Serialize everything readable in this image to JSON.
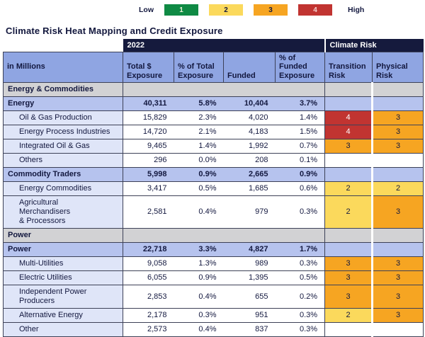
{
  "legend": {
    "low_label": "Low",
    "high_label": "High",
    "levels": [
      {
        "value": "1",
        "color": "#0f8a44",
        "text_color": "#eef2d8"
      },
      {
        "value": "2",
        "color": "#fbd95c",
        "text_color": "#13183f"
      },
      {
        "value": "3",
        "color": "#f6a522",
        "text_color": "#13183f"
      },
      {
        "value": "4",
        "color": "#c13431",
        "text_color": "#f5d2d0"
      }
    ]
  },
  "title": "Climate Risk Heat Mapping and Credit Exposure",
  "colors": {
    "navy": "#151a3d",
    "header_blue": "#8fa5e2",
    "summary_blue": "#b6c3ee",
    "label_blue": "#dfe5f8",
    "section_gray": "#d2d2d4",
    "risk_1": "#0f8a44",
    "risk_2": "#fbd95c",
    "risk_3": "#f6a522",
    "risk_4": "#c13431",
    "risk_4_text": "#ffffff",
    "text_dark": "#13183f"
  },
  "table": {
    "group_headers": [
      {
        "label": "2022"
      },
      {
        "label": "Climate Risk"
      }
    ],
    "columns": [
      "in Millions",
      "Total $ Exposure",
      "% of Total Exposure",
      "Funded",
      "% of Funded Exposure",
      "Transition Risk",
      "Physical Risk"
    ],
    "rows": [
      {
        "type": "section",
        "label": "Energy & Commodities",
        "values": [
          "",
          "",
          "",
          ""
        ],
        "transition": "",
        "physical": ""
      },
      {
        "type": "summary",
        "label": "Energy",
        "values": [
          "40,311",
          "5.8%",
          "10,404",
          "3.7%"
        ],
        "transition": "",
        "physical": ""
      },
      {
        "type": "detail",
        "label": "Oil & Gas Production",
        "values": [
          "15,829",
          "2.3%",
          "4,020",
          "1.4%"
        ],
        "transition": "4",
        "physical": "3"
      },
      {
        "type": "detail",
        "label": "Energy Process Industries",
        "values": [
          "14,720",
          "2.1%",
          "4,183",
          "1.5%"
        ],
        "transition": "4",
        "physical": "3"
      },
      {
        "type": "detail",
        "label": "Integrated Oil & Gas",
        "values": [
          "9,465",
          "1.4%",
          "1,992",
          "0.7%"
        ],
        "transition": "3",
        "physical": "3"
      },
      {
        "type": "detail",
        "label": "Others",
        "values": [
          "296",
          "0.0%",
          "208",
          "0.1%"
        ],
        "transition": "",
        "physical": ""
      },
      {
        "type": "summary",
        "label": "Commodity Traders",
        "values": [
          "5,998",
          "0.9%",
          "2,665",
          "0.9%"
        ],
        "transition": "",
        "physical": ""
      },
      {
        "type": "detail",
        "label": "Energy Commodities",
        "values": [
          "3,417",
          "0.5%",
          "1,685",
          "0.6%"
        ],
        "transition": "2",
        "physical": "2"
      },
      {
        "type": "detail",
        "label": "Agricultural\nMerchandisers\n& Processors",
        "values": [
          "2,581",
          "0.4%",
          "979",
          "0.3%"
        ],
        "transition": "2",
        "physical": "3"
      },
      {
        "type": "section",
        "label": "Power",
        "values": [
          "",
          "",
          "",
          ""
        ],
        "transition": "",
        "physical": ""
      },
      {
        "type": "summary",
        "label": "Power",
        "values": [
          "22,718",
          "3.3%",
          "4,827",
          "1.7%"
        ],
        "transition": "",
        "physical": ""
      },
      {
        "type": "detail",
        "label": "Multi-Utilities",
        "values": [
          "9,058",
          "1.3%",
          "989",
          "0.3%"
        ],
        "transition": "3",
        "physical": "3"
      },
      {
        "type": "detail",
        "label": "Electric Utilities",
        "values": [
          "6,055",
          "0.9%",
          "1,395",
          "0.5%"
        ],
        "transition": "3",
        "physical": "3"
      },
      {
        "type": "detail",
        "label": "Independent Power\nProducers",
        "values": [
          "2,853",
          "0.4%",
          "655",
          "0.2%"
        ],
        "transition": "3",
        "physical": "3"
      },
      {
        "type": "detail",
        "label": "Alternative Energy",
        "values": [
          "2,178",
          "0.3%",
          "951",
          "0.3%"
        ],
        "transition": "2",
        "physical": "3"
      },
      {
        "type": "detail",
        "label": "Other",
        "values": [
          "2,573",
          "0.4%",
          "837",
          "0.3%"
        ],
        "transition": "",
        "physical": ""
      }
    ]
  }
}
